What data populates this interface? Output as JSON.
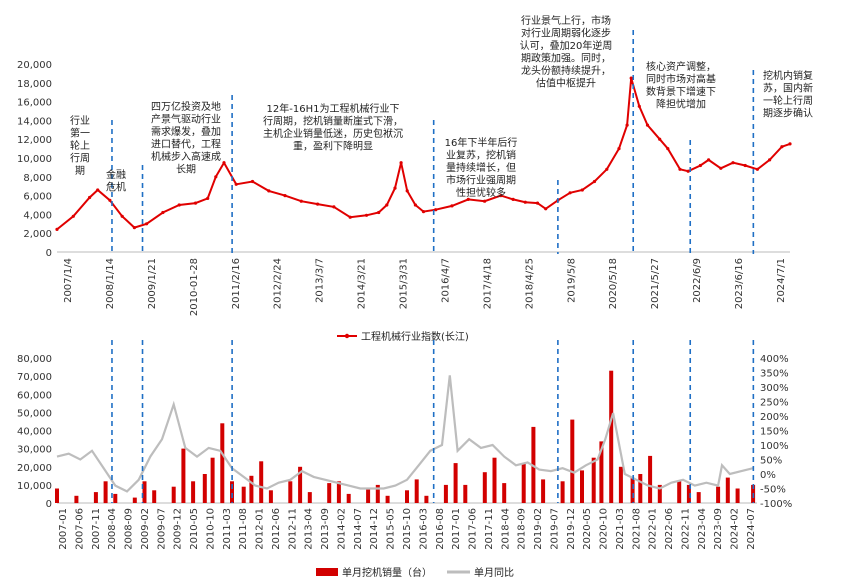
{
  "colors": {
    "index_line": "#E00000",
    "bars": "#D20000",
    "yoy_line": "#BDBDBD",
    "marker_line": "#1F6FC5"
  },
  "chart_data": [
    {
      "type": "line",
      "y_ticks": [
        "0",
        "2,000",
        "4,000",
        "6,000",
        "8,000",
        "10,000",
        "12,000",
        "14,000",
        "16,000",
        "18,000",
        "20,000"
      ],
      "ylim": [
        0,
        20000
      ],
      "x_tick_labels": [
        "2007/1/4",
        "2008/1/14",
        "2009/1/21",
        "2010-01-28",
        "2011/2/16",
        "2012/2/24",
        "2013/3/7",
        "2014/3/21",
        "2015/3/31",
        "2016/4/7",
        "2017/4/18",
        "2018/4/25",
        "2019/5/8",
        "2020/5/18",
        "2021/5/27",
        "2022/6/9",
        "2023/6/16",
        "2024/7/1"
      ],
      "series": [
        {
          "name": "工程机械行业指数(长江)",
          "x": [
            2007.0,
            2007.4,
            2007.8,
            2008.0,
            2008.3,
            2008.6,
            2008.9,
            2009.2,
            2009.6,
            2010.0,
            2010.4,
            2010.7,
            2010.9,
            2011.1,
            2011.4,
            2011.8,
            2012.2,
            2012.6,
            2013.0,
            2013.4,
            2013.8,
            2014.2,
            2014.6,
            2014.9,
            2015.1,
            2015.3,
            2015.45,
            2015.6,
            2015.8,
            2016.0,
            2016.3,
            2016.7,
            2017.1,
            2017.5,
            2017.9,
            2018.2,
            2018.5,
            2018.8,
            2019.0,
            2019.3,
            2019.6,
            2019.9,
            2020.2,
            2020.5,
            2020.8,
            2021.0,
            2021.1,
            2021.3,
            2021.5,
            2021.8,
            2022.0,
            2022.3,
            2022.5,
            2022.8,
            2023.0,
            2023.3,
            2023.6,
            2023.9,
            2024.2,
            2024.5,
            2024.8,
            2025.0
          ],
          "values": [
            2400,
            3800,
            5800,
            6600,
            5500,
            3800,
            2600,
            3000,
            4200,
            5000,
            5200,
            5700,
            8000,
            9500,
            7200,
            7500,
            6500,
            6000,
            5400,
            5100,
            4800,
            3700,
            3900,
            4200,
            5000,
            6800,
            9500,
            6500,
            5000,
            4300,
            4500,
            4900,
            5600,
            5400,
            6000,
            5600,
            5300,
            5200,
            4600,
            5500,
            6300,
            6600,
            7500,
            8800,
            11000,
            13500,
            18500,
            15500,
            13500,
            12000,
            11000,
            8800,
            8600,
            9200,
            9800,
            8900,
            9500,
            9200,
            8800,
            9800,
            11200,
            11500
          ]
        }
      ],
      "annotations": [
        {
          "lines": [
            "行业",
            "第一",
            "轮上",
            "行周",
            "期"
          ]
        },
        {
          "lines": [
            "金融",
            "危机"
          ]
        },
        {
          "lines": [
            "四万亿投资及地",
            "产景气驱动行业",
            "需求爆发，叠加",
            "进口替代，工程",
            "机械步入高速成",
            "长期"
          ]
        },
        {
          "lines": [
            "12年-16H1为工程机械行业下",
            "行周期，挖机销量断崖式下滑，",
            "主机企业销量低迷，历史包袱沉",
            "重，盈利下降明显"
          ]
        },
        {
          "lines": [
            "16年下半年后行",
            "业复苏，挖机销",
            "量持续增长，但",
            "市场行业强周期",
            "性担忧较多"
          ]
        },
        {
          "lines": [
            "行业景气上行，市场",
            "对行业周期弱化逐步",
            "认可，叠加20年逆周",
            "期政策加强。同时，",
            "龙头份额持续提升，",
            "估值中枢提升"
          ]
        },
        {
          "lines": [
            "核心资产调整，",
            "同时市场对高基",
            "数背景下增速下",
            "降担忧增加"
          ]
        },
        {
          "lines": [
            "挖机内销复",
            "苏，国内新",
            "一轮上行周",
            "期逐步确认"
          ]
        }
      ]
    },
    {
      "type": "bar",
      "y_ticks_left": [
        "0",
        "10,000",
        "20,000",
        "30,000",
        "40,000",
        "50,000",
        "60,000",
        "70,000",
        "80,000"
      ],
      "y_ticks_right": [
        "-100%",
        "-50%",
        "0%",
        "50%",
        "100%",
        "150%",
        "200%",
        "250%",
        "300%",
        "350%",
        "400%"
      ],
      "ylim_left": [
        0,
        80000
      ],
      "ylim_right": [
        -100,
        400
      ],
      "x_tick_labels": [
        "2007-01",
        "2007-06",
        "2007-11",
        "2008-04",
        "2008-09",
        "2009-02",
        "2009-07",
        "2009-12",
        "2010-05",
        "2010-10",
        "2011-03",
        "2011-08",
        "2012-01",
        "2012-06",
        "2012-11",
        "2013-04",
        "2013-09",
        "2014-02",
        "2014-07",
        "2014-12",
        "2015-05",
        "2015-10",
        "2016-03",
        "2016-08",
        "2017-01",
        "2017-06",
        "2017-11",
        "2018-04",
        "2018-09",
        "2019-02",
        "2019-07",
        "2019-12",
        "2020-05",
        "2020-10",
        "2021-03",
        "2021-08",
        "2022-01",
        "2022-06",
        "2022-11",
        "2023-04",
        "2023-09",
        "2024-02",
        "2024-07"
      ],
      "series": [
        {
          "name": "单月挖机销量（台）",
          "x": [
            2007.0,
            2007.5,
            2008.0,
            2008.25,
            2008.5,
            2009.0,
            2009.25,
            2009.5,
            2010.0,
            2010.25,
            2010.5,
            2010.8,
            2011.0,
            2011.25,
            2011.5,
            2011.8,
            2012.0,
            2012.25,
            2012.5,
            2013.0,
            2013.25,
            2013.5,
            2014.0,
            2014.25,
            2014.5,
            2015.0,
            2015.25,
            2015.5,
            2016.0,
            2016.25,
            2016.5,
            2017.0,
            2017.25,
            2017.5,
            2018.0,
            2018.25,
            2018.5,
            2019.0,
            2019.25,
            2019.5,
            2020.0,
            2020.25,
            2020.5,
            2020.8,
            2021.0,
            2021.25,
            2021.5,
            2021.8,
            2022.0,
            2022.25,
            2022.5,
            2023.0,
            2023.25,
            2023.5,
            2024.0,
            2024.25,
            2024.5,
            2024.9
          ],
          "values": [
            8000,
            4000,
            6000,
            12000,
            5000,
            3000,
            12000,
            7000,
            9000,
            30000,
            12000,
            16000,
            25000,
            44000,
            12000,
            9000,
            15000,
            23000,
            7000,
            12000,
            20000,
            6000,
            11000,
            12000,
            5000,
            8000,
            10000,
            4000,
            7000,
            13000,
            4000,
            10000,
            22000,
            10000,
            17000,
            25000,
            11000,
            22000,
            42000,
            13000,
            12000,
            46000,
            18000,
            25000,
            34000,
            73000,
            20000,
            14000,
            16000,
            26000,
            10000,
            12000,
            10000,
            6000,
            9000,
            14000,
            8000,
            10000
          ]
        },
        {
          "name": "单月同比",
          "x": [
            2007.0,
            2007.3,
            2007.6,
            2007.9,
            2008.2,
            2008.5,
            2008.8,
            2009.1,
            2009.4,
            2009.7,
            2010.0,
            2010.3,
            2010.6,
            2010.9,
            2011.2,
            2011.5,
            2011.8,
            2012.1,
            2012.4,
            2012.7,
            2013.0,
            2013.3,
            2013.6,
            2013.9,
            2014.2,
            2014.5,
            2014.8,
            2015.1,
            2015.4,
            2015.7,
            2016.0,
            2016.3,
            2016.6,
            2016.9,
            2017.1,
            2017.3,
            2017.6,
            2017.9,
            2018.2,
            2018.5,
            2018.8,
            2019.1,
            2019.4,
            2019.7,
            2020.0,
            2020.3,
            2020.6,
            2020.9,
            2021.1,
            2021.3,
            2021.6,
            2021.9,
            2022.2,
            2022.5,
            2022.8,
            2023.1,
            2023.4,
            2023.7,
            2024.0,
            2024.1,
            2024.3,
            2024.6,
            2024.9
          ],
          "values": [
            60,
            70,
            50,
            80,
            20,
            -40,
            -60,
            -20,
            60,
            120,
            240,
            90,
            60,
            90,
            80,
            20,
            -10,
            -40,
            -50,
            -30,
            -20,
            10,
            -10,
            -20,
            -30,
            -40,
            -50,
            -50,
            -50,
            -40,
            -20,
            30,
            80,
            100,
            340,
            80,
            120,
            90,
            100,
            60,
            30,
            40,
            15,
            10,
            20,
            5,
            30,
            50,
            120,
            210,
            0,
            -20,
            -40,
            -50,
            -30,
            -20,
            -40,
            -30,
            -40,
            30,
            0,
            10,
            20
          ]
        }
      ]
    }
  ]
}
